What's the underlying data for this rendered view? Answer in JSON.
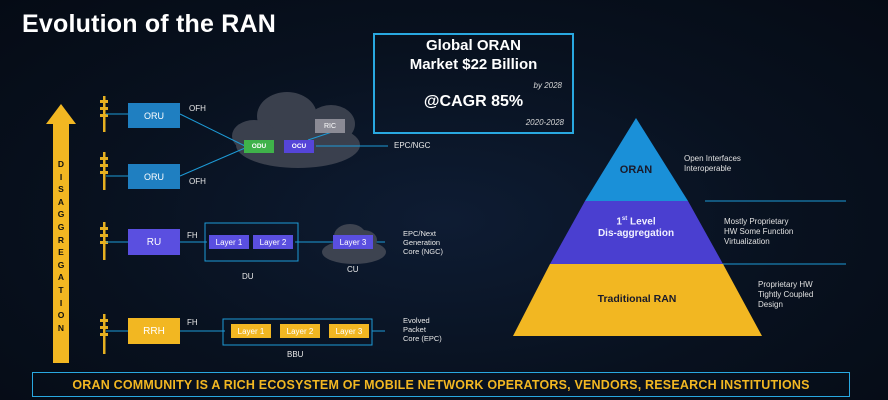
{
  "title": "Evolution of the RAN",
  "market": {
    "line1": "Global ORAN",
    "line2": "Market $22 Billion",
    "by": "by 2028",
    "cagr": "@CAGR 85%",
    "period": "2020-2028"
  },
  "disaggregation": [
    "D",
    "I",
    "S",
    "A",
    "G",
    "G",
    "R",
    "E",
    "G",
    "A",
    "T",
    "I",
    "O",
    "N"
  ],
  "rows": {
    "oran1": {
      "unit": "ORU",
      "link": "OFH"
    },
    "oran2": {
      "unit": "ORU",
      "link": "OFH"
    },
    "cloud": {
      "ric": "RIC",
      "odu": "ODU",
      "ocu": "OCU",
      "core": "EPC/NGC"
    },
    "ru": {
      "unit": "RU",
      "link": "FH",
      "l1": "Layer 1",
      "l2": "Layer 2",
      "group": "DU",
      "l3": "Layer 3",
      "cu": "CU",
      "core_lines": [
        "EPC/Next",
        "Generation",
        "Core (NGC)"
      ]
    },
    "rrh": {
      "unit": "RRH",
      "link": "FH",
      "l1": "Layer 1",
      "l2": "Layer 2",
      "l3": "Layer 3",
      "group": "BBU",
      "core_lines": [
        "Evolved",
        "Packet",
        "Core (EPC)"
      ]
    }
  },
  "pyramid": {
    "top": {
      "label": "ORAN",
      "desc": [
        "Open Interfaces",
        "Interoperable"
      ]
    },
    "middle": {
      "label_sup_num": "1",
      "label_sup": "st",
      "label_rest": " Level",
      "label_line2": "Dis-aggregation",
      "desc": [
        "Mostly Proprietary",
        "HW Some Function",
        "Virtualization"
      ]
    },
    "bottom": {
      "label": "Traditional RAN",
      "desc": [
        "Proprietary HW",
        "Tightly Coupled",
        "Design"
      ]
    }
  },
  "colors": {
    "accent_blue": "#29a8e0",
    "gold": "#f2b722",
    "purple": "#4a3fd0"
  },
  "banner": "ORAN COMMUNITY IS A RICH ECOSYSTEM OF MOBILE NETWORK OPERATORS, VENDORS, RESEARCH INSTITUTIONS"
}
